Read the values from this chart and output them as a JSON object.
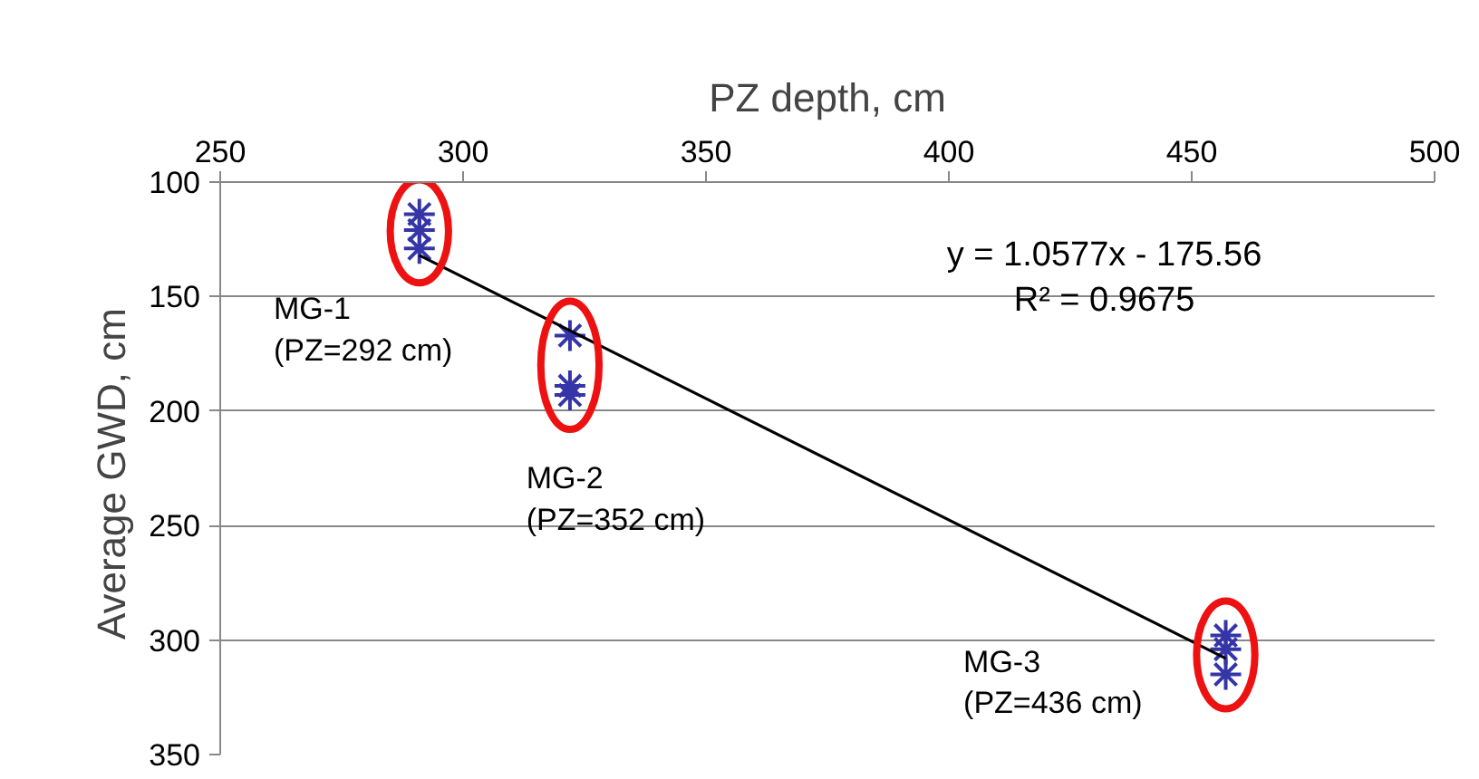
{
  "chart_data": {
    "type": "scatter",
    "xlabel": "PZ depth, cm",
    "ylabel": "Average  GWD, cm",
    "xlim": [
      250,
      500
    ],
    "xticks": [
      250,
      300,
      350,
      400,
      450,
      500
    ],
    "ylim": [
      350,
      100
    ],
    "yticks": [
      100,
      150,
      200,
      250,
      300,
      350
    ],
    "grid": "y",
    "series": [
      {
        "color": "#3535a8",
        "marker": "cross",
        "x": [
          291,
          291,
          291,
          322,
          322,
          322,
          457,
          457,
          457
        ],
        "values": [
          114,
          121,
          129,
          167,
          189,
          193,
          298,
          304,
          315
        ]
      },
      {
        "type": "line",
        "marker": "none",
        "color": "#000000",
        "x": [
          291,
          457
        ],
        "values": [
          132,
          308
        ]
      }
    ],
    "annotations": [
      "MG-1\n(PZ=292 cm)",
      "MG-2\n(PZ=352 cm)",
      "MG-3\n(PZ=436 cm)",
      "y = 1.0577x - 175.56",
      "R² = 0.9675"
    ]
  }
}
